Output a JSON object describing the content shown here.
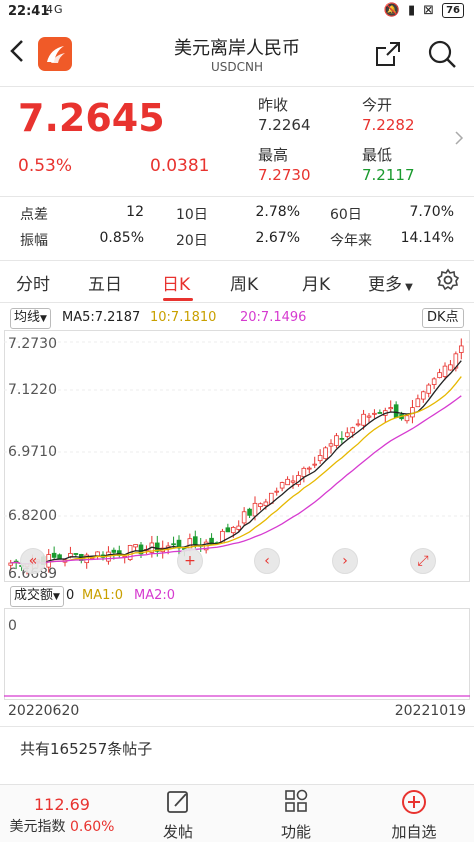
{
  "status_bar": {
    "time": "22:41",
    "network": "4G",
    "battery": "76"
  },
  "header": {
    "title": "美元离岸人民币",
    "subtitle": "USDCNH"
  },
  "quote": {
    "price": "7.2645",
    "change_pct": "0.53%",
    "change_abs": "0.0381",
    "prev_close_label": "昨收",
    "prev_close": "7.2264",
    "open_label": "今开",
    "open": "7.2282",
    "high_label": "最高",
    "high": "7.2730",
    "low_label": "最低",
    "low": "7.2117"
  },
  "stats": {
    "row1": [
      {
        "label": "点差",
        "value": "12"
      },
      {
        "label": "10日",
        "value": "2.78%"
      },
      {
        "label": "60日",
        "value": "7.70%"
      }
    ],
    "row2": [
      {
        "label": "振幅",
        "value": "0.85%"
      },
      {
        "label": "20日",
        "value": "2.67%"
      },
      {
        "label": "今年来",
        "value": "14.14%"
      }
    ]
  },
  "tabs": [
    "分时",
    "五日",
    "日K",
    "周K",
    "月K",
    "更多"
  ],
  "active_tab": "日K",
  "ma": {
    "selector": "均线",
    "ma5": "MA5:7.2187",
    "ma10": "10:7.1810",
    "ma20": "20:7.1496",
    "dk_label": "DK点"
  },
  "kchart": {
    "y_labels": [
      "7.2730",
      "7.1220",
      "6.9710",
      "6.8200",
      "6.6689"
    ]
  },
  "volume": {
    "selector": "成交额",
    "ma1": "MA1:0",
    "ma2": "MA2:0",
    "zero": "0"
  },
  "dates": {
    "start": "20220620",
    "end": "20221019"
  },
  "posts": "共有165257条帖子",
  "bottom": {
    "index_value": "112.69",
    "index_label": "美元指数",
    "index_pct": "0.60%",
    "post": "发帖",
    "functions": "功能",
    "add_watch": "加自选"
  },
  "colors": {
    "up": "#e8332f",
    "down": "#1a9a2e",
    "ma5": "#222222",
    "ma10": "#e6b800",
    "ma20": "#d63bd0"
  }
}
